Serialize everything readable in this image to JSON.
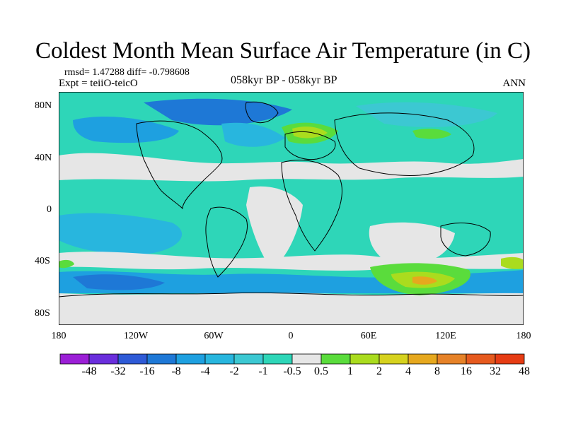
{
  "title": "Coldest Month Mean Surface Air Temperature (in C)",
  "stats": "rmsd= 1.47288 diff= -0.798608",
  "expt": "Expt = teiiO-teicO",
  "center_label": "058kyr BP - 058kyr BP",
  "right_label": "ANN",
  "lon_labels": [
    "180",
    "120W",
    "60W",
    "0",
    "60E",
    "120E",
    "180"
  ],
  "lat_labels": [
    "80N",
    "40N",
    "0",
    "40S",
    "80S"
  ],
  "colorbar": {
    "levels": [
      "-48",
      "-32",
      "-16",
      "-8",
      "-4",
      "-2",
      "-1",
      "-0.5",
      "0.5",
      "1",
      "2",
      "4",
      "8",
      "16",
      "32",
      "48"
    ],
    "colors": [
      "#9b1fd6",
      "#6a2edc",
      "#2e5ad6",
      "#1e78d6",
      "#1ea0e0",
      "#28b6de",
      "#3cc8d2",
      "#2ed6b8",
      "#e6e6e6",
      "#5adc3c",
      "#aadc1e",
      "#d6d21e",
      "#e6a81e",
      "#e68228",
      "#e65a1e",
      "#e63c14"
    ]
  },
  "map_colors": {
    "neutral": "#e6e6e6",
    "teal": "#2ed6b8",
    "cyan": "#3cc8d2",
    "light_blue": "#28b6de",
    "blue": "#1ea0e0",
    "dark_blue": "#1e78d6",
    "green": "#5adc3c",
    "yellow_green": "#aadc1e",
    "yellow": "#d6d21e",
    "orange": "#e6a81e"
  }
}
